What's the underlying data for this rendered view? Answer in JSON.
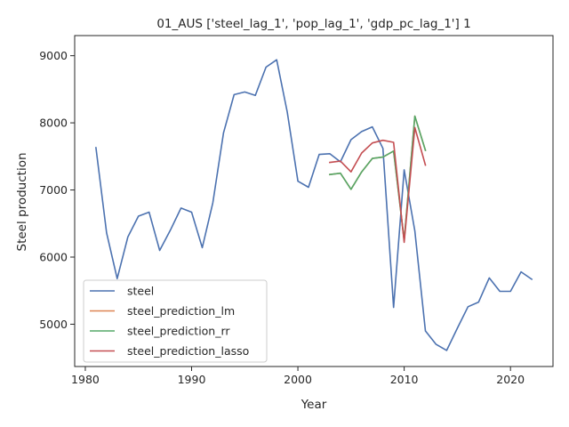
{
  "chart_data": {
    "type": "line",
    "title": "01_AUS ['steel_lag_1', 'pop_lag_1', 'gdp_pc_lag_1'] 1",
    "xlabel": "Year",
    "ylabel": "Steel production",
    "xlim": [
      1979,
      2024
    ],
    "ylim": [
      4370,
      9300
    ],
    "xticks": [
      1980,
      1990,
      2000,
      2010,
      2020
    ],
    "yticks": [
      5000,
      6000,
      7000,
      8000,
      9000
    ],
    "grid": false,
    "legend_position": "lower-left",
    "series": [
      {
        "name": "steel",
        "color": "#4c72b0",
        "x": [
          1981,
          1982,
          1983,
          1984,
          1985,
          1986,
          1987,
          1988,
          1989,
          1990,
          1991,
          1992,
          1993,
          1994,
          1995,
          1996,
          1997,
          1998,
          1999,
          2000,
          2001,
          2002,
          2003,
          2004,
          2005,
          2006,
          2007,
          2008,
          2009,
          2010,
          2011,
          2012,
          2013,
          2014,
          2015,
          2016,
          2017,
          2018,
          2019,
          2020,
          2021,
          2022
        ],
        "y": [
          7630,
          6360,
          5680,
          6300,
          6610,
          6670,
          6100,
          6400,
          6730,
          6670,
          6140,
          6810,
          7850,
          8420,
          8460,
          8410,
          8830,
          8940,
          8160,
          7130,
          7040,
          7530,
          7540,
          7420,
          7750,
          7870,
          7940,
          7620,
          5250,
          7300,
          6390,
          4900,
          4700,
          4610,
          4940,
          5260,
          5330,
          5690,
          5490,
          5490,
          5780,
          5670
        ]
      },
      {
        "name": "steel_prediction_lm",
        "color": "#dd8452",
        "x": [
          2003,
          2004,
          2005,
          2006,
          2007,
          2008,
          2009,
          2010,
          2011,
          2012
        ],
        "y": [
          7230,
          7250,
          7010,
          7270,
          7470,
          7490,
          7580,
          6250,
          8100,
          7590
        ]
      },
      {
        "name": "steel_prediction_rr",
        "color": "#55a868",
        "x": [
          2003,
          2004,
          2005,
          2006,
          2007,
          2008,
          2009,
          2010,
          2011,
          2012
        ],
        "y": [
          7230,
          7250,
          7010,
          7270,
          7470,
          7490,
          7580,
          6250,
          8100,
          7590
        ]
      },
      {
        "name": "steel_prediction_lasso",
        "color": "#c44e52",
        "x": [
          2003,
          2004,
          2005,
          2006,
          2007,
          2008,
          2009,
          2010,
          2011,
          2012
        ],
        "y": [
          7410,
          7430,
          7270,
          7550,
          7700,
          7740,
          7710,
          6220,
          7930,
          7370
        ]
      }
    ]
  }
}
